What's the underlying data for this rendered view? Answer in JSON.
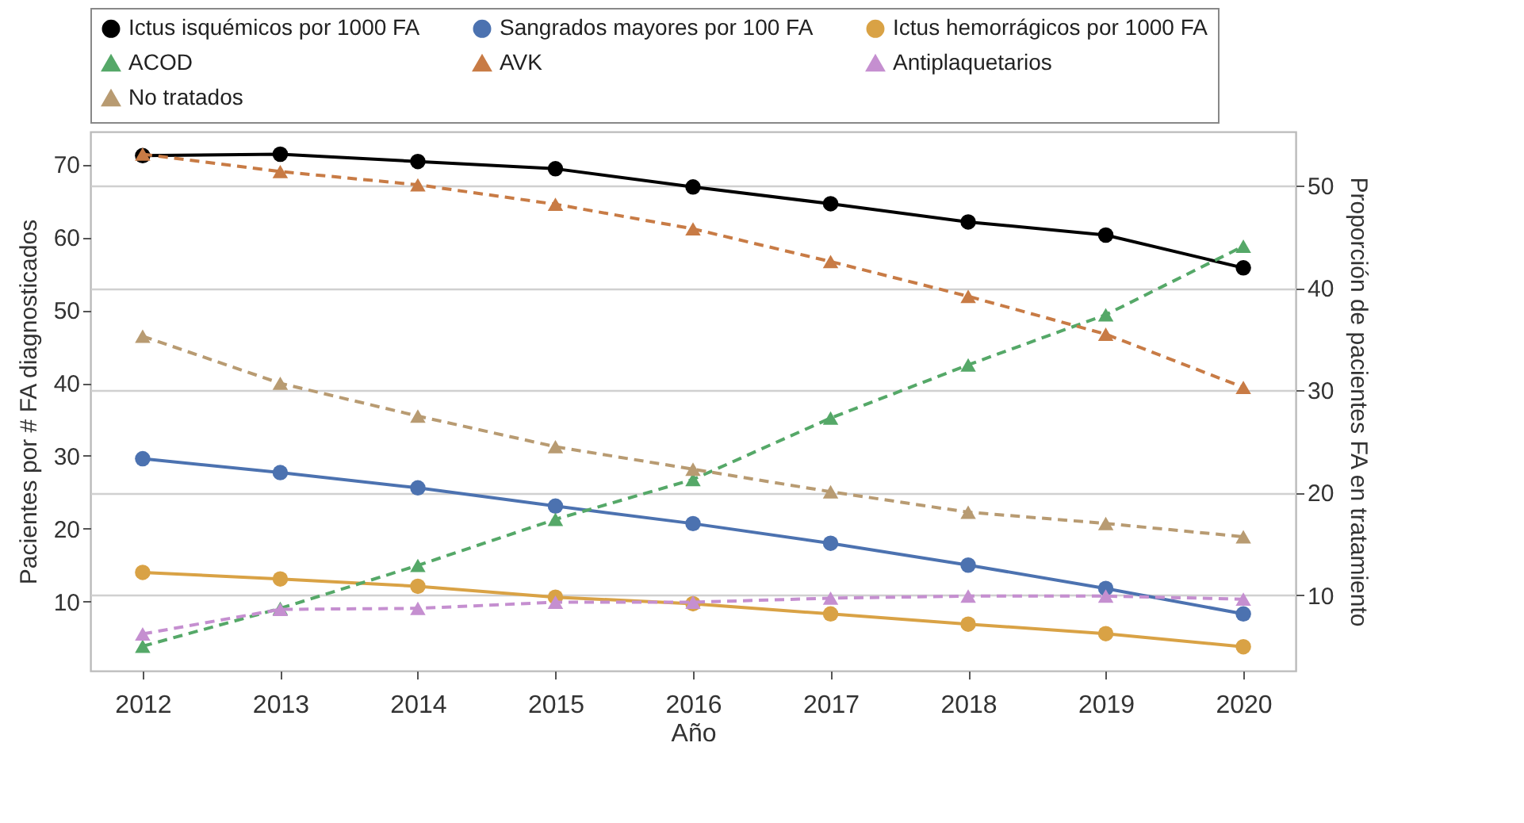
{
  "chart_data": {
    "type": "line",
    "xlabel": "Año",
    "ylabel": "Pacientes por # FA diagnosticados",
    "y2label": "Proporción de pacientes FA en tratamiento",
    "categories": [
      "2012",
      "2013",
      "2014",
      "2015",
      "2016",
      "2017",
      "2018",
      "2019",
      "2020"
    ],
    "ylim": [
      0.5,
      74.5
    ],
    "yticks": [
      10,
      20,
      30,
      40,
      50,
      60,
      70
    ],
    "y2lim": [
      2.6,
      55.3
    ],
    "y2ticks": [
      10,
      20,
      30,
      40,
      50
    ],
    "grid": "y2",
    "legend": "top",
    "series": [
      {
        "name": "Ictus isquémicos por 1000 FA",
        "color": "#000000",
        "marker": "circle",
        "line_style": "solid",
        "values": [
          71.2,
          71.4,
          70.4,
          69.4,
          66.9,
          64.6,
          62.1,
          60.3,
          55.8
        ]
      },
      {
        "name": "Sangrados mayores por 100 FA",
        "color": "#4c72b0",
        "marker": "circle",
        "line_style": "solid",
        "values": [
          29.6,
          27.7,
          25.6,
          23.1,
          20.7,
          18.0,
          15.0,
          11.8,
          8.3
        ]
      },
      {
        "name": "Ictus hemorrágicos por 1000 FA",
        "color": "#d9a245",
        "marker": "circle",
        "line_style": "solid",
        "values": [
          14.0,
          13.1,
          12.1,
          10.6,
          9.7,
          8.3,
          6.9,
          5.6,
          3.8
        ]
      },
      {
        "name": "ACOD",
        "color": "#55a868",
        "marker": "triangle",
        "line_style": "dashed",
        "axis": "y2",
        "values": [
          5.0,
          8.7,
          12.9,
          17.4,
          21.3,
          27.3,
          32.5,
          37.4,
          44.1
        ]
      },
      {
        "name": "AVK",
        "color": "#c87b45",
        "marker": "triangle",
        "line_style": "dashed",
        "axis": "y2",
        "values": [
          53.1,
          51.4,
          50.1,
          48.2,
          45.8,
          42.6,
          39.2,
          35.5,
          30.3
        ]
      },
      {
        "name": "Antiplaquetarios",
        "color": "#c58fd0",
        "marker": "triangle",
        "line_style": "dashed",
        "axis": "y2",
        "values": [
          6.2,
          8.6,
          8.7,
          9.3,
          9.3,
          9.7,
          9.9,
          9.9,
          9.6
        ]
      },
      {
        "name": "No tratados",
        "color": "#b89b72",
        "marker": "triangle",
        "line_style": "dashed",
        "axis": "y2",
        "values": [
          35.3,
          30.7,
          27.5,
          24.5,
          22.3,
          20.1,
          18.1,
          17.0,
          15.7
        ]
      }
    ]
  }
}
